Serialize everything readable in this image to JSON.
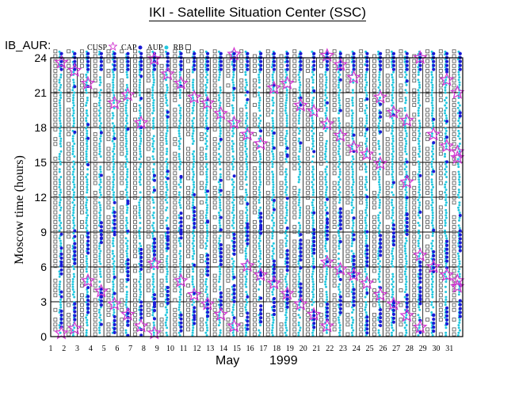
{
  "title": "IKI - Satellite Situation Center (SSC)",
  "dataset_label": "IB_AUR:",
  "legend": [
    {
      "label": "CUSP",
      "symbol": "star",
      "color": "#d23cd2"
    },
    {
      "label": "CAP",
      "symbol": "dot",
      "color": "#1a1ad6"
    },
    {
      "label": "AUP",
      "symbol": "dot",
      "color": "#22c8e0"
    },
    {
      "label": "RB",
      "symbol": "square",
      "color": "#555555"
    }
  ],
  "chart_data": {
    "type": "scatter",
    "title": "IKI - Satellite Situation Center (SSC)",
    "ylabel": "Moscow time (hours)",
    "xlabel_month": "May",
    "xlabel_year": "1999",
    "x_ticks": [
      "1",
      "2",
      "3",
      "4",
      "5",
      "6",
      "7",
      "8",
      "9",
      "10",
      "11",
      "12",
      "13",
      "14",
      "15",
      "16",
      "17",
      "18",
      "19",
      "20",
      "21",
      "22",
      "23",
      "24",
      "25",
      "26",
      "27",
      "28",
      "29",
      "30",
      "31"
    ],
    "y_ticks": [
      "0",
      "3",
      "6",
      "9",
      "12",
      "15",
      "18",
      "21",
      "24"
    ],
    "xlim": [
      1,
      32
    ],
    "ylim": [
      0,
      24
    ],
    "grid": true,
    "series_colors": {
      "cusp": "#d23cd2",
      "cap": "#1a1ad6",
      "aup": "#22c8e0",
      "rb": "#555555"
    },
    "cusp_points": [
      [
        1.8,
        23.6
      ],
      [
        1.8,
        0.3
      ],
      [
        2.8,
        22.9
      ],
      [
        2.8,
        0.7
      ],
      [
        3.8,
        21.8
      ],
      [
        3.8,
        4.8
      ],
      [
        4.8,
        3.9
      ],
      [
        5.8,
        20.1
      ],
      [
        5.8,
        2.8
      ],
      [
        6.8,
        20.8
      ],
      [
        6.8,
        1.9
      ],
      [
        7.8,
        18.4
      ],
      [
        7.8,
        0.9
      ],
      [
        8.8,
        23.9
      ],
      [
        8.8,
        6.3
      ],
      [
        8.8,
        0.3
      ],
      [
        9.8,
        22.6
      ],
      [
        10.8,
        21.8
      ],
      [
        10.8,
        4.8
      ],
      [
        11.8,
        20.6
      ],
      [
        11.8,
        3.6
      ],
      [
        12.8,
        20.1
      ],
      [
        12.8,
        2.8
      ],
      [
        13.8,
        19.2
      ],
      [
        13.8,
        1.9
      ],
      [
        14.8,
        18.4
      ],
      [
        14.8,
        24.3
      ],
      [
        14.8,
        0.9
      ],
      [
        15.8,
        17.4
      ],
      [
        15.8,
        6.1
      ],
      [
        16.8,
        16.6
      ],
      [
        16.8,
        5.3
      ],
      [
        17.8,
        21.4
      ],
      [
        17.8,
        4.6
      ],
      [
        18.8,
        21.8
      ],
      [
        18.8,
        3.7
      ],
      [
        19.8,
        19.9
      ],
      [
        19.8,
        2.8
      ],
      [
        20.8,
        19.4
      ],
      [
        20.8,
        1.9
      ],
      [
        21.8,
        24.2
      ],
      [
        21.8,
        18.3
      ],
      [
        21.8,
        6.4
      ],
      [
        21.8,
        0.9
      ],
      [
        22.8,
        23.4
      ],
      [
        22.8,
        17.3
      ],
      [
        22.8,
        5.8
      ],
      [
        23.8,
        22.3
      ],
      [
        23.8,
        16.3
      ],
      [
        23.8,
        5.3
      ],
      [
        24.8,
        15.7
      ],
      [
        24.8,
        4.6
      ],
      [
        25.8,
        20.6
      ],
      [
        25.8,
        14.9
      ],
      [
        25.8,
        3.6
      ],
      [
        26.8,
        19.3
      ],
      [
        26.8,
        2.8
      ],
      [
        27.8,
        18.6
      ],
      [
        27.8,
        13.3
      ],
      [
        27.8,
        1.8
      ],
      [
        28.8,
        24.0
      ],
      [
        28.8,
        7.0
      ],
      [
        28.8,
        0.8
      ],
      [
        29.8,
        17.4
      ],
      [
        29.8,
        6.0
      ],
      [
        30.8,
        22.1
      ],
      [
        30.8,
        16.4
      ],
      [
        30.8,
        5.3
      ],
      [
        31.6,
        21.0
      ],
      [
        31.6,
        15.9
      ],
      [
        31.6,
        15.4
      ],
      [
        31.6,
        4.8
      ],
      [
        31.6,
        4.3
      ]
    ]
  }
}
